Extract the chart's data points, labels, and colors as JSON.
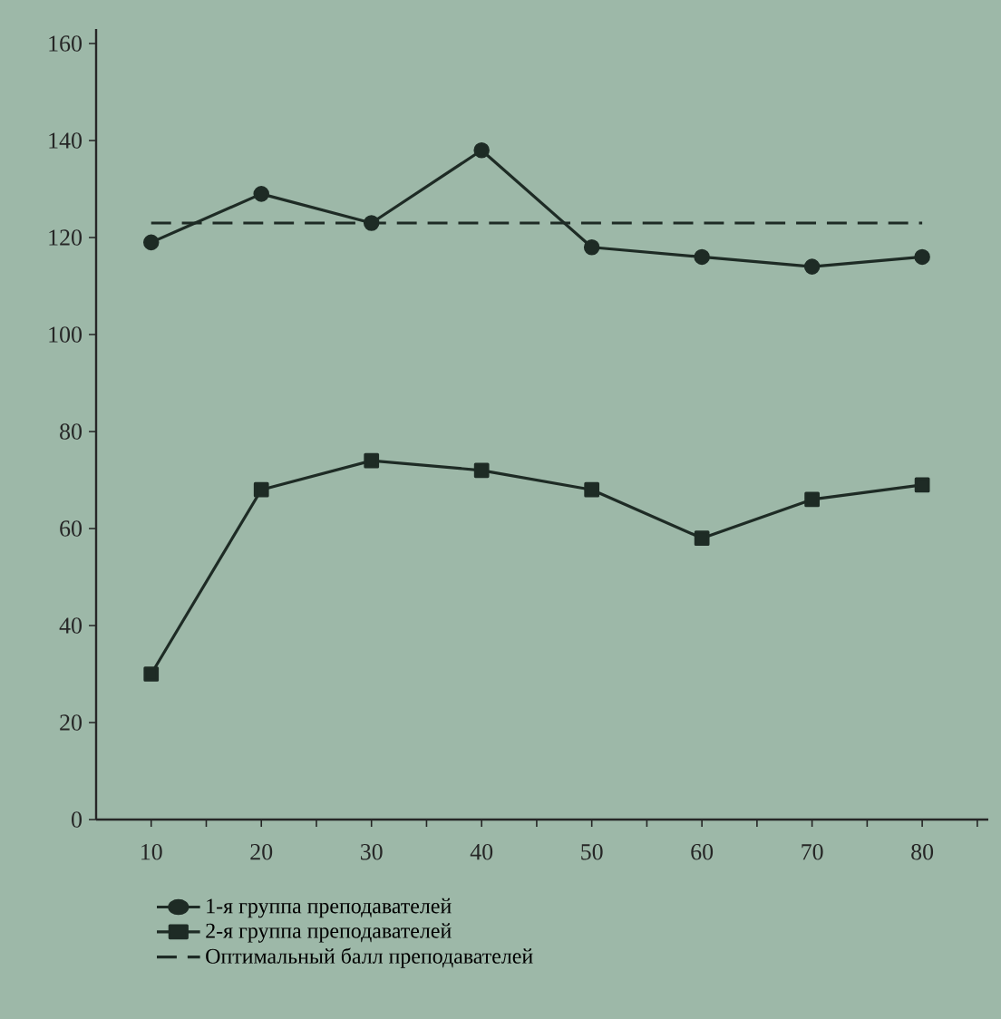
{
  "chart_data": {
    "type": "line",
    "x": [
      10,
      20,
      30,
      40,
      50,
      60,
      70,
      80
    ],
    "series": [
      {
        "name": "1-я группа преподавателей",
        "color": "#1e2b25",
        "marker": "circle",
        "line_style": "solid",
        "values": [
          119,
          129,
          123,
          138,
          118,
          116,
          114,
          116
        ]
      },
      {
        "name": "2-я группа преподавателей",
        "color": "#1e2b25",
        "marker": "square",
        "line_style": "solid",
        "values": [
          30,
          68,
          74,
          72,
          68,
          58,
          66,
          69
        ]
      },
      {
        "name": "Оптимальный балл преподавателей",
        "color": "#1e2b25",
        "marker": "none",
        "line_style": "dashed",
        "values": [
          123,
          123,
          123,
          123,
          123,
          123,
          123,
          123
        ]
      }
    ],
    "xlim": [
      5,
      86
    ],
    "ylim": [
      0,
      163
    ],
    "xticks": [
      10,
      {
        "value": 15,
        "label": null
      },
      20,
      {
        "value": 25,
        "label": null
      },
      30,
      {
        "value": 35,
        "label": null
      },
      40,
      {
        "value": 45,
        "label": null
      },
      50,
      {
        "value": 55,
        "label": null
      },
      60,
      {
        "value": 65,
        "label": null
      },
      70,
      {
        "value": 75,
        "label": null
      },
      80,
      {
        "value": 85,
        "label": null
      }
    ],
    "yticks": [
      0,
      20,
      40,
      60,
      80,
      100,
      120,
      140,
      160
    ],
    "grid": false,
    "legend": "bottom"
  }
}
